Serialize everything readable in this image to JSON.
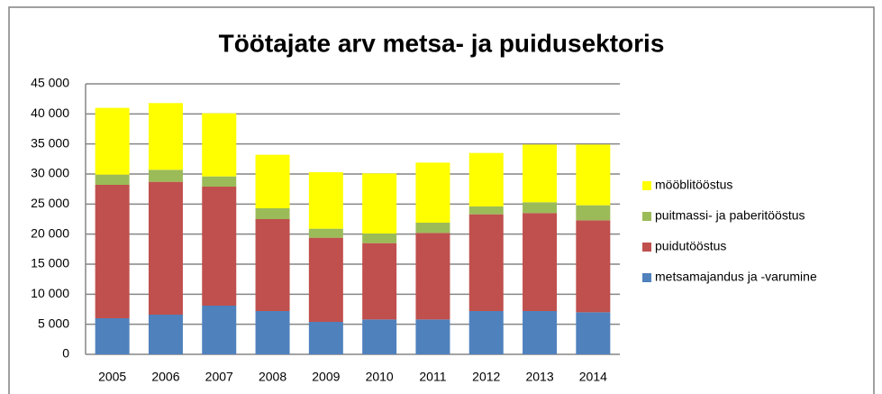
{
  "chart_data": {
    "type": "stacked_bar",
    "title": "Töötajate arv metsa- ja puidusektoris",
    "categories": [
      "2005",
      "2006",
      "2007",
      "2008",
      "2009",
      "2010",
      "2011",
      "2012",
      "2013",
      "2014"
    ],
    "series": [
      {
        "name": "metsamajandus ja -varumine",
        "color": "#4f81bd",
        "values": [
          6000,
          6600,
          8100,
          7200,
          5400,
          5800,
          5800,
          7200,
          7200,
          7000
        ]
      },
      {
        "name": "puidutööstus",
        "color": "#c0504d",
        "values": [
          22200,
          22100,
          19800,
          15300,
          14000,
          12700,
          14400,
          16100,
          16300,
          15300
        ]
      },
      {
        "name": "puitmassi- ja paberitööstus",
        "color": "#9bbb59",
        "values": [
          1700,
          2000,
          1700,
          1800,
          1500,
          1600,
          1700,
          1300,
          1800,
          2500
        ]
      },
      {
        "name": "mööblitööstus",
        "color": "#ffff00",
        "values": [
          11100,
          11100,
          10500,
          8900,
          9400,
          10000,
          10000,
          8900,
          9600,
          10100
        ]
      }
    ],
    "ylim": [
      0,
      45000
    ],
    "yticks": [
      0,
      {
        "value": 5000,
        "label": "5 000"
      },
      {
        "value": 10000,
        "label": "10 000"
      },
      {
        "value": 15000,
        "label": "15 000"
      },
      {
        "value": 20000,
        "label": "20 000"
      },
      {
        "value": 25000,
        "label": "25 000"
      },
      {
        "value": 30000,
        "label": "30 000"
      },
      {
        "value": 35000,
        "label": "35 000"
      },
      {
        "value": 40000,
        "label": "40 000"
      },
      {
        "value": 45000,
        "label": "45 000"
      }
    ],
    "grid": true,
    "legend": "right"
  }
}
